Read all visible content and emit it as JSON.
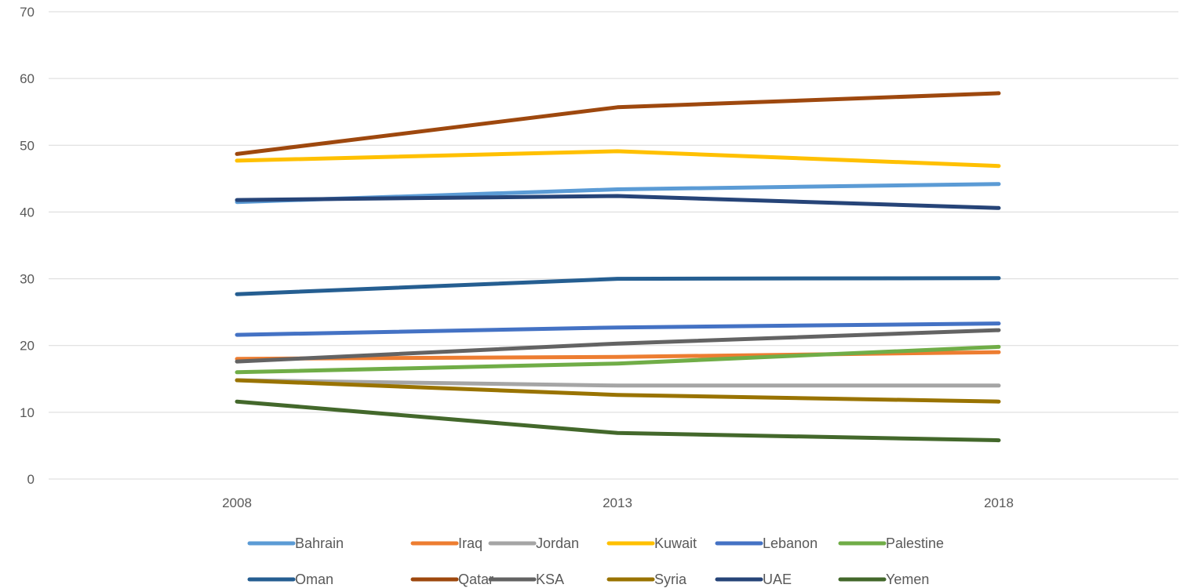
{
  "chart_data": {
    "type": "line",
    "title": "",
    "xlabel": "",
    "ylabel": "",
    "categories": [
      "2008",
      "2013",
      "2018"
    ],
    "ylim": [
      0,
      70
    ],
    "yticks": [
      0,
      10,
      20,
      30,
      40,
      50,
      60,
      70
    ],
    "grid": true,
    "legend_position": "bottom",
    "series": [
      {
        "name": "Bahrain",
        "color": "#5B9BD5",
        "values": [
          41.5,
          43.4,
          44.2
        ]
      },
      {
        "name": "Iraq",
        "color": "#ED7D31",
        "values": [
          18.0,
          18.3,
          19.0
        ]
      },
      {
        "name": "Jordan",
        "color": "#A5A5A5",
        "values": [
          14.8,
          14.0,
          14.0
        ]
      },
      {
        "name": "Kuwait",
        "color": "#FFC000",
        "values": [
          47.7,
          49.1,
          46.9
        ]
      },
      {
        "name": "Lebanon",
        "color": "#4472C4",
        "values": [
          21.6,
          22.7,
          23.3
        ]
      },
      {
        "name": "Palestine",
        "color": "#70AD47",
        "values": [
          16.0,
          17.3,
          19.8
        ]
      },
      {
        "name": "Oman",
        "color": "#255E91",
        "values": [
          27.7,
          30.0,
          30.1
        ]
      },
      {
        "name": "Qatar",
        "color": "#9E480E",
        "values": [
          48.7,
          55.7,
          57.8
        ]
      },
      {
        "name": "KSA",
        "color": "#636363",
        "values": [
          17.6,
          20.3,
          22.3
        ]
      },
      {
        "name": "Syria",
        "color": "#997300",
        "values": [
          14.8,
          12.6,
          11.6
        ]
      },
      {
        "name": "UAE",
        "color": "#264478",
        "values": [
          41.8,
          42.4,
          40.6
        ]
      },
      {
        "name": "Yemen",
        "color": "#43682B",
        "values": [
          11.6,
          6.9,
          5.8
        ]
      }
    ]
  }
}
